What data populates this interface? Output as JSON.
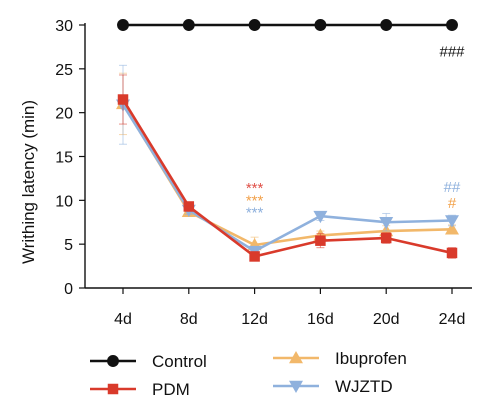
{
  "chart_data": {
    "type": "line",
    "title": "",
    "xlabel": "",
    "ylabel": "Writhing latency (min)",
    "categories": [
      "4d",
      "8d",
      "12d",
      "16d",
      "20d",
      "24d"
    ],
    "ylim": [
      0,
      30
    ],
    "yticks": [
      0,
      5,
      10,
      15,
      20,
      25,
      30
    ],
    "grid": false,
    "legend_position": "bottom",
    "series": [
      {
        "name": "Control",
        "color": "#111111",
        "marker": "circle",
        "values": [
          30,
          30,
          30,
          30,
          30,
          30
        ],
        "errors": [
          0,
          0,
          0,
          0,
          0,
          0
        ]
      },
      {
        "name": "Ibuprofen",
        "color": "#f2b86a",
        "marker": "triangle-up",
        "values": [
          21.0,
          8.7,
          4.9,
          6.0,
          6.5,
          6.7
        ],
        "errors": [
          3.5,
          0.5,
          0.9,
          0.5,
          0.6,
          0.5
        ]
      },
      {
        "name": "WJZTD",
        "color": "#8fb1dd",
        "marker": "triangle-down",
        "values": [
          20.9,
          8.9,
          4.2,
          8.2,
          7.5,
          7.7
        ],
        "errors": [
          4.5,
          0.5,
          0.5,
          0.5,
          1.0,
          0.6
        ]
      },
      {
        "name": "PDM",
        "color": "#d93a2b",
        "marker": "square",
        "values": [
          21.5,
          9.3,
          3.6,
          5.4,
          5.7,
          4.0
        ],
        "errors": [
          2.8,
          0.5,
          0.5,
          0.8,
          0.6,
          0.6
        ]
      }
    ],
    "annotations": [
      {
        "category": "24d",
        "y": 27,
        "text": "###",
        "color": "#111111"
      },
      {
        "category": "12d",
        "y": 11.4,
        "text": "***",
        "color": "#e0524a"
      },
      {
        "category": "12d",
        "y": 10.0,
        "text": "***",
        "color": "#f2a14a"
      },
      {
        "category": "12d",
        "y": 8.6,
        "text": "***",
        "color": "#8fb1dd"
      },
      {
        "category": "24d",
        "y": 11.5,
        "text": "##",
        "color": "#8fb1dd"
      },
      {
        "category": "24d",
        "y": 9.7,
        "text": "#",
        "color": "#f2a14a"
      }
    ]
  },
  "legend": {
    "items": [
      {
        "label": "Control",
        "color": "#111111",
        "marker": "circle"
      },
      {
        "label": "Ibuprofen",
        "color": "#f2b86a",
        "marker": "triangle-up"
      },
      {
        "label": "PDM",
        "color": "#d93a2b",
        "marker": "square"
      },
      {
        "label": "WJZTD",
        "color": "#8fb1dd",
        "marker": "triangle-down"
      }
    ]
  }
}
